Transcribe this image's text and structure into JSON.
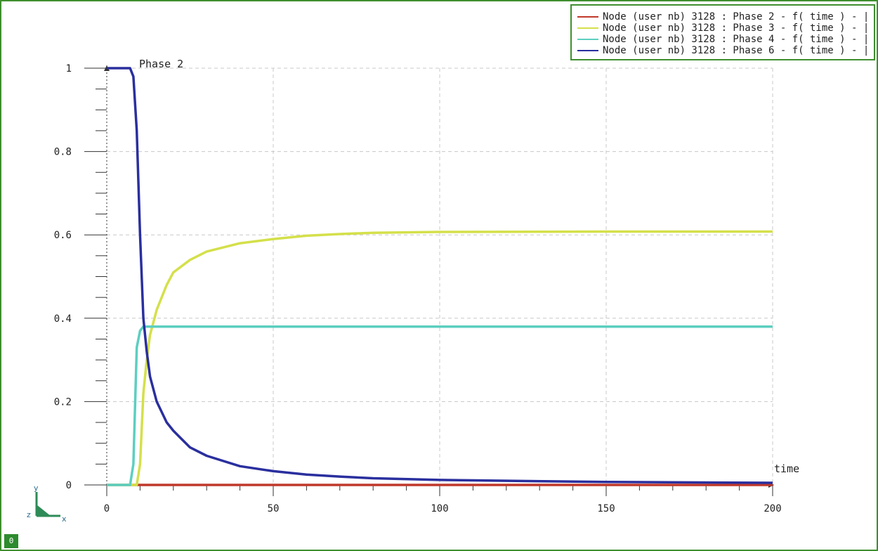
{
  "legend": {
    "items": [
      {
        "label": "Node (user nb) 3128 : Phase  2 - f( time ) - |",
        "color": "#c0392b"
      },
      {
        "label": "Node (user nb) 3128 : Phase  3 - f( time ) - |",
        "color": "#d4e04a"
      },
      {
        "label": "Node (user nb) 3128 : Phase  4 - f( time ) - |",
        "color": "#5ccfc0"
      },
      {
        "label": "Node (user nb) 3128 : Phase  6 - f( time ) - |",
        "color": "#2a2f9e"
      }
    ]
  },
  "triad": {
    "y": "y",
    "z": "z",
    "x": "x"
  },
  "view_badge": "0",
  "chart_data": {
    "type": "line",
    "xlabel": "time",
    "ylabel": "",
    "annotation": "Phase 2",
    "xlim": [
      0,
      200
    ],
    "ylim": [
      0,
      1
    ],
    "x_ticks": [
      0,
      50,
      100,
      150,
      200
    ],
    "y_ticks": [
      0,
      0.2,
      0.4,
      0.6,
      0.8,
      1
    ],
    "x_tick_labels": [
      "0",
      "50",
      "100",
      "150",
      "200"
    ],
    "y_tick_labels": [
      "0",
      "0.2",
      "0.4",
      "0.6",
      "0.8",
      "1"
    ],
    "grid": true,
    "legend_position": "top-right",
    "series": [
      {
        "name": "Node (user nb) 3128 : Phase  2 - f( time ) - |",
        "color": "#c0392b",
        "x": [
          0,
          7,
          10,
          50,
          100,
          150,
          200
        ],
        "y": [
          0,
          0,
          0,
          0,
          0,
          0,
          0
        ]
      },
      {
        "name": "Node (user nb) 3128 : Phase  3 - f( time ) - |",
        "color": "#d4e04a",
        "x": [
          0,
          9,
          10,
          11,
          12,
          13,
          15,
          18,
          20,
          25,
          30,
          40,
          50,
          60,
          70,
          80,
          100,
          150,
          200
        ],
        "y": [
          0,
          0,
          0.05,
          0.22,
          0.3,
          0.36,
          0.42,
          0.48,
          0.51,
          0.54,
          0.56,
          0.58,
          0.59,
          0.598,
          0.602,
          0.605,
          0.607,
          0.608,
          0.608
        ]
      },
      {
        "name": "Node (user nb) 3128 : Phase  4 - f( time ) - |",
        "color": "#5ccfc0",
        "x": [
          0,
          7,
          8,
          9,
          10,
          11,
          50,
          100,
          150,
          200
        ],
        "y": [
          0,
          0,
          0.05,
          0.33,
          0.37,
          0.38,
          0.38,
          0.38,
          0.38,
          0.38
        ]
      },
      {
        "name": "Node (user nb) 3128 : Phase  6 - f( time ) - |",
        "color": "#2a2f9e",
        "x": [
          0,
          7,
          8,
          9,
          10,
          11,
          12,
          13,
          15,
          18,
          20,
          25,
          30,
          40,
          50,
          60,
          70,
          80,
          100,
          150,
          200
        ],
        "y": [
          1,
          1,
          0.98,
          0.85,
          0.6,
          0.4,
          0.32,
          0.26,
          0.2,
          0.15,
          0.13,
          0.09,
          0.07,
          0.045,
          0.033,
          0.025,
          0.02,
          0.016,
          0.012,
          0.007,
          0.005
        ]
      }
    ]
  }
}
